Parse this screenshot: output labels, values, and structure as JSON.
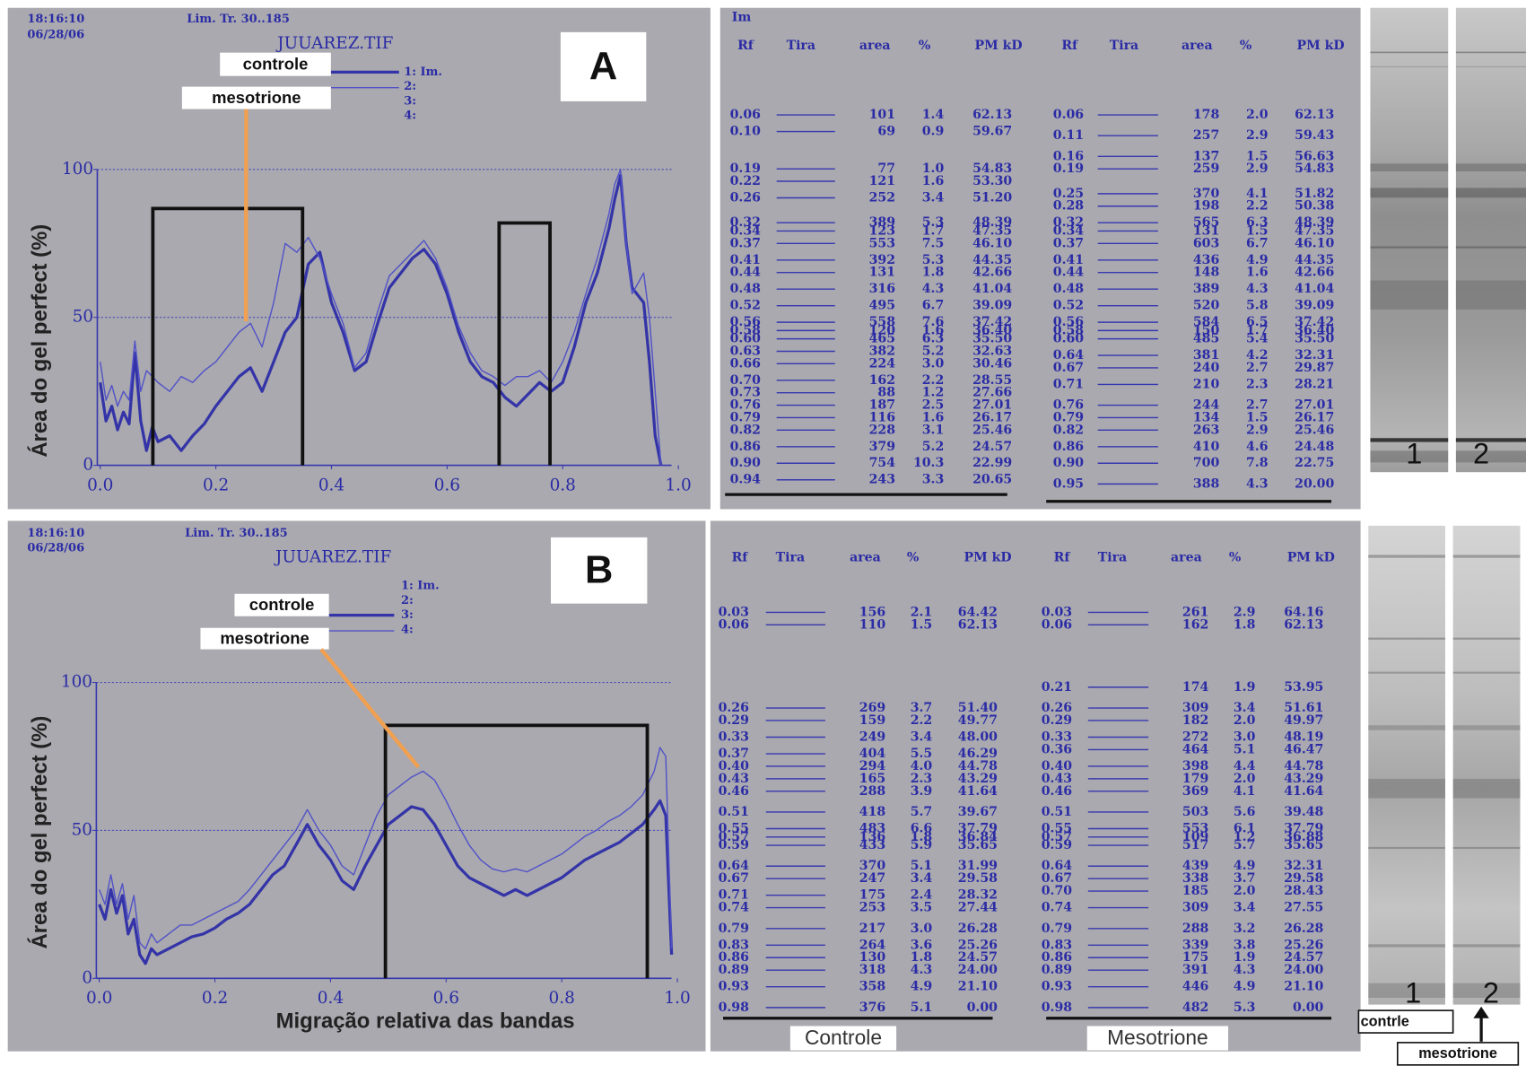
{
  "chart_data": [
    {
      "type": "line",
      "panel_label": "A",
      "header": {
        "time": "18:16:10",
        "date": "06/28/06",
        "lane_range": "Lim. Tr. 30..185",
        "file": "JUUAREZ.TIF"
      },
      "legend_slots": [
        "1: Im.",
        "2:",
        "3:",
        "4:"
      ],
      "ylabel": "Área do gel perfect (%)",
      "x": [
        0,
        0.01,
        0.02,
        0.03,
        0.04,
        0.05,
        0.06,
        0.07,
        0.08,
        0.09,
        0.1,
        0.12,
        0.14,
        0.16,
        0.18,
        0.2,
        0.22,
        0.24,
        0.26,
        0.28,
        0.3,
        0.32,
        0.34,
        0.36,
        0.38,
        0.4,
        0.42,
        0.44,
        0.46,
        0.48,
        0.5,
        0.52,
        0.54,
        0.56,
        0.58,
        0.6,
        0.62,
        0.64,
        0.66,
        0.68,
        0.7,
        0.72,
        0.74,
        0.76,
        0.78,
        0.8,
        0.82,
        0.84,
        0.86,
        0.88,
        0.89,
        0.9,
        0.91,
        0.92,
        0.94,
        0.95,
        0.96,
        0.97
      ],
      "series": [
        {
          "name": "controle",
          "color": "#3434a8",
          "width": 3,
          "values": [
            28,
            15,
            20,
            12,
            18,
            14,
            38,
            15,
            5,
            13,
            8,
            10,
            5,
            10,
            14,
            20,
            25,
            30,
            33,
            25,
            35,
            45,
            50,
            68,
            72,
            55,
            45,
            32,
            35,
            48,
            60,
            65,
            70,
            73,
            68,
            58,
            45,
            35,
            30,
            28,
            23,
            20,
            24,
            28,
            25,
            28,
            40,
            55,
            65,
            80,
            90,
            98,
            75,
            60,
            55,
            35,
            10,
            0
          ]
        },
        {
          "name": "mesotrione",
          "color": "#5252c8",
          "width": 1.3,
          "values": [
            35,
            22,
            27,
            20,
            25,
            22,
            42,
            25,
            32,
            30,
            28,
            25,
            30,
            28,
            32,
            35,
            40,
            45,
            48,
            40,
            55,
            75,
            72,
            77,
            70,
            58,
            48,
            33,
            38,
            52,
            64,
            68,
            72,
            76,
            70,
            60,
            47,
            38,
            32,
            30,
            27,
            30,
            30,
            32,
            28,
            35,
            45,
            58,
            70,
            85,
            95,
            100,
            75,
            58,
            65,
            50,
            25,
            0
          ],
          "pointer": {
            "x": 0.252,
            "y": 48.7
          }
        }
      ],
      "xlim": [
        0,
        1
      ],
      "ylim": [
        0,
        100
      ],
      "xticks": [
        {
          "value": 0,
          "label": "0.0"
        },
        0.2,
        0.4,
        0.6,
        0.8,
        {
          "value": 1,
          "label": "1.0"
        }
      ],
      "yticks": [
        0,
        50,
        100
      ],
      "grid": true,
      "highlights": [
        {
          "x": [
            0.091,
            0.35
          ],
          "y": 86.8
        },
        {
          "x": [
            0.69,
            0.778
          ],
          "y": 81.9
        }
      ]
    },
    {
      "type": "line",
      "panel_label": "B",
      "header": {
        "time": "18:16:10",
        "date": "06/28/06",
        "lane_range": "Lim. Tr. 30..185",
        "file": "JUUAREZ.TIF"
      },
      "legend_slots": [
        "1: Im.",
        "2:",
        "3:",
        "4:"
      ],
      "ylabel": "Área do gel perfect (%)",
      "xlabel": "Migração relativa das bandas",
      "x": [
        0,
        0.01,
        0.02,
        0.03,
        0.04,
        0.05,
        0.06,
        0.07,
        0.08,
        0.09,
        0.1,
        0.12,
        0.14,
        0.16,
        0.18,
        0.2,
        0.22,
        0.24,
        0.26,
        0.28,
        0.3,
        0.32,
        0.34,
        0.36,
        0.38,
        0.4,
        0.42,
        0.44,
        0.46,
        0.48,
        0.5,
        0.52,
        0.54,
        0.56,
        0.58,
        0.6,
        0.62,
        0.64,
        0.66,
        0.68,
        0.7,
        0.72,
        0.74,
        0.76,
        0.78,
        0.8,
        0.82,
        0.84,
        0.86,
        0.88,
        0.9,
        0.92,
        0.94,
        0.96,
        0.97,
        0.98,
        0.99
      ],
      "series": [
        {
          "name": "controle",
          "color": "#3434a8",
          "width": 3,
          "values": [
            25,
            20,
            30,
            22,
            28,
            15,
            20,
            8,
            5,
            10,
            8,
            10,
            12,
            14,
            15,
            17,
            20,
            22,
            25,
            30,
            35,
            38,
            45,
            52,
            45,
            40,
            33,
            30,
            38,
            45,
            52,
            55,
            58,
            57,
            52,
            45,
            38,
            34,
            32,
            30,
            28,
            30,
            28,
            30,
            32,
            34,
            37,
            40,
            42,
            44,
            46,
            49,
            52,
            57,
            60,
            55,
            8
          ]
        },
        {
          "name": "mesotrione",
          "color": "#5252c8",
          "width": 1.3,
          "values": [
            30,
            25,
            35,
            25,
            32,
            20,
            28,
            12,
            10,
            15,
            12,
            15,
            18,
            18,
            20,
            22,
            24,
            26,
            30,
            35,
            40,
            45,
            50,
            57,
            50,
            45,
            38,
            35,
            45,
            55,
            62,
            65,
            68,
            70,
            67,
            60,
            52,
            45,
            40,
            37,
            36,
            37,
            36,
            38,
            40,
            42,
            45,
            48,
            50,
            53,
            55,
            58,
            62,
            70,
            78,
            75,
            10
          ],
          "pointer": {
            "x": 0.552,
            "y": 71.4
          }
        }
      ],
      "xlim": [
        0,
        1
      ],
      "ylim": [
        0,
        100
      ],
      "xticks": [
        {
          "value": 0,
          "label": "0.0"
        },
        0.2,
        0.4,
        0.6,
        0.8,
        {
          "value": 1,
          "label": "1.0"
        }
      ],
      "yticks": [
        0,
        50,
        100
      ],
      "grid": true,
      "highlights": [
        {
          "x": [
            0.495,
            0.948
          ],
          "y": 85.5
        }
      ]
    }
  ],
  "tables": [
    {
      "title": "Im",
      "columns": [
        "Rf",
        "Tira",
        "area",
        "%",
        "PM kD"
      ],
      "groups": [
        {
          "rows": [
            [
              "0.06",
              "101",
              "1.4",
              "62.13"
            ],
            [
              "0.10",
              "69",
              "0.9",
              "59.67"
            ],
            [
              "0.19",
              "77",
              "1.0",
              "54.83"
            ],
            [
              "0.22",
              "121",
              "1.6",
              "53.30"
            ],
            [
              "0.26",
              "252",
              "3.4",
              "51.20"
            ],
            [
              "0.32",
              "389",
              "5.3",
              "48.39"
            ],
            [
              "0.34",
              "123",
              "1.7",
              "47.35"
            ],
            [
              "0.37",
              "553",
              "7.5",
              "46.10"
            ],
            [
              "0.41",
              "392",
              "5.3",
              "44.35"
            ],
            [
              "0.44",
              "131",
              "1.8",
              "42.66"
            ],
            [
              "0.48",
              "316",
              "4.3",
              "41.04"
            ],
            [
              "0.52",
              "495",
              "6.7",
              "39.09"
            ],
            [
              "0.56",
              "558",
              "7.6",
              "37.42"
            ],
            [
              "0.58",
              "120",
              "1.6",
              "36.40"
            ],
            [
              "0.60",
              "465",
              "6.3",
              "35.50"
            ],
            [
              "0.63",
              "382",
              "5.2",
              "32.63"
            ],
            [
              "0.66",
              "224",
              "3.0",
              "30.46"
            ],
            [
              "0.70",
              "162",
              "2.2",
              "28.55"
            ],
            [
              "0.73",
              "88",
              "1.2",
              "27.66"
            ],
            [
              "0.76",
              "187",
              "2.5",
              "27.01"
            ],
            [
              "0.79",
              "116",
              "1.6",
              "26.17"
            ],
            [
              "0.82",
              "228",
              "3.1",
              "25.46"
            ],
            [
              "0.86",
              "379",
              "5.2",
              "24.57"
            ],
            [
              "0.90",
              "754",
              "10.3",
              "22.99"
            ],
            [
              "0.94",
              "243",
              "3.3",
              "20.65"
            ]
          ]
        },
        {
          "rows": [
            [
              "0.06",
              "178",
              "2.0",
              "62.13"
            ],
            [
              "0.11",
              "257",
              "2.9",
              "59.43"
            ],
            [
              "0.16",
              "137",
              "1.5",
              "56.63"
            ],
            [
              "0.19",
              "259",
              "2.9",
              "54.83"
            ],
            [
              "0.25",
              "370",
              "4.1",
              "51.82"
            ],
            [
              "0.28",
              "198",
              "2.2",
              "50.38"
            ],
            [
              "0.32",
              "565",
              "6.3",
              "48.39"
            ],
            [
              "0.34",
              "131",
              "1.5",
              "47.35"
            ],
            [
              "0.37",
              "603",
              "6.7",
              "46.10"
            ],
            [
              "0.41",
              "436",
              "4.9",
              "44.35"
            ],
            [
              "0.44",
              "148",
              "1.6",
              "42.66"
            ],
            [
              "0.48",
              "389",
              "4.3",
              "41.04"
            ],
            [
              "0.52",
              "520",
              "5.8",
              "39.09"
            ],
            [
              "0.56",
              "584",
              "6.5",
              "37.42"
            ],
            [
              "0.58",
              "150",
              "1.7",
              "36.40"
            ],
            [
              "0.60",
              "485",
              "5.4",
              "35.50"
            ],
            [
              "0.64",
              "381",
              "4.2",
              "32.31"
            ],
            [
              "0.67",
              "240",
              "2.7",
              "29.87"
            ],
            [
              "0.71",
              "210",
              "2.3",
              "28.21"
            ],
            [
              "0.76",
              "244",
              "2.7",
              "27.01"
            ],
            [
              "0.79",
              "134",
              "1.5",
              "26.17"
            ],
            [
              "0.82",
              "263",
              "2.9",
              "25.46"
            ],
            [
              "0.86",
              "410",
              "4.6",
              "24.48"
            ],
            [
              "0.90",
              "700",
              "7.8",
              "22.75"
            ],
            [
              "0.95",
              "388",
              "4.3",
              "20.00"
            ]
          ]
        }
      ]
    },
    {
      "columns": [
        "Rf",
        "Tira",
        "area",
        "%",
        "PM kD"
      ],
      "groups": [
        {
          "label": "Controle",
          "rows": [
            [
              "0.03",
              "156",
              "2.1",
              "64.42"
            ],
            [
              "0.06",
              "110",
              "1.5",
              "62.13"
            ],
            [
              "0.26",
              "269",
              "3.7",
              "51.40"
            ],
            [
              "0.29",
              "159",
              "2.2",
              "49.77"
            ],
            [
              "0.33",
              "249",
              "3.4",
              "48.00"
            ],
            [
              "0.37",
              "404",
              "5.5",
              "46.29"
            ],
            [
              "0.40",
              "294",
              "4.0",
              "44.78"
            ],
            [
              "0.43",
              "165",
              "2.3",
              "43.29"
            ],
            [
              "0.46",
              "288",
              "3.9",
              "41.64"
            ],
            [
              "0.51",
              "418",
              "5.7",
              "39.67"
            ],
            [
              "0.55",
              "483",
              "6.6",
              "37.79"
            ],
            [
              "0.57",
              "136",
              "1.8",
              "36.84"
            ],
            [
              "0.59",
              "433",
              "5.9",
              "35.65"
            ],
            [
              "0.64",
              "370",
              "5.1",
              "31.99"
            ],
            [
              "0.67",
              "247",
              "3.4",
              "29.58"
            ],
            [
              "0.71",
              "175",
              "2.4",
              "28.32"
            ],
            [
              "0.74",
              "253",
              "3.5",
              "27.44"
            ],
            [
              "0.79",
              "217",
              "3.0",
              "26.28"
            ],
            [
              "0.83",
              "264",
              "3.6",
              "25.26"
            ],
            [
              "0.86",
              "130",
              "1.8",
              "24.57"
            ],
            [
              "0.89",
              "318",
              "4.3",
              "24.00"
            ],
            [
              "0.93",
              "358",
              "4.9",
              "21.10"
            ],
            [
              "0.98",
              "376",
              "5.1",
              "0.00"
            ]
          ]
        },
        {
          "label": "Mesotrione",
          "rows": [
            [
              "0.03",
              "261",
              "2.9",
              "64.16"
            ],
            [
              "0.06",
              "162",
              "1.8",
              "62.13"
            ],
            [
              "0.21",
              "174",
              "1.9",
              "53.95"
            ],
            [
              "0.26",
              "309",
              "3.4",
              "51.61"
            ],
            [
              "0.29",
              "182",
              "2.0",
              "49.97"
            ],
            [
              "0.33",
              "272",
              "3.0",
              "48.19"
            ],
            [
              "0.36",
              "464",
              "5.1",
              "46.47"
            ],
            [
              "0.40",
              "398",
              "4.4",
              "44.78"
            ],
            [
              "0.43",
              "179",
              "2.0",
              "43.29"
            ],
            [
              "0.46",
              "369",
              "4.1",
              "41.64"
            ],
            [
              "0.51",
              "503",
              "5.6",
              "39.48"
            ],
            [
              "0.55",
              "553",
              "6.1",
              "37.79"
            ],
            [
              "0.57",
              "109",
              "1.2",
              "36.88"
            ],
            [
              "0.59",
              "517",
              "5.7",
              "35.65"
            ],
            [
              "0.64",
              "439",
              "4.9",
              "32.31"
            ],
            [
              "0.67",
              "338",
              "3.7",
              "29.58"
            ],
            [
              "0.70",
              "185",
              "2.0",
              "28.43"
            ],
            [
              "0.74",
              "309",
              "3.4",
              "27.55"
            ],
            [
              "0.79",
              "288",
              "3.2",
              "26.28"
            ],
            [
              "0.83",
              "339",
              "3.8",
              "25.26"
            ],
            [
              "0.86",
              "175",
              "1.9",
              "24.57"
            ],
            [
              "0.89",
              "391",
              "4.3",
              "24.00"
            ],
            [
              "0.93",
              "446",
              "4.9",
              "21.10"
            ],
            [
              "0.98",
              "482",
              "5.3",
              "0.00"
            ]
          ]
        }
      ]
    }
  ],
  "gels": [
    {
      "lanes": [
        "1",
        "2"
      ]
    },
    {
      "lanes": [
        "1",
        "2"
      ],
      "labels": [
        "contrle",
        "mesotrione"
      ]
    }
  ]
}
